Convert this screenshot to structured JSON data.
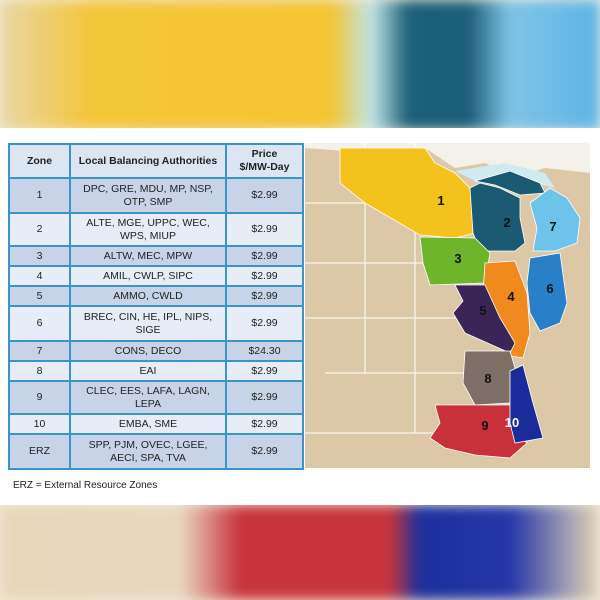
{
  "table": {
    "headers": [
      "Zone",
      "Local Balancing Authorities",
      "Price\n$/MW-Day"
    ],
    "header_price_line1": "Price",
    "header_price_line2": "$/MW-Day",
    "rows": [
      {
        "zone": "1",
        "lbas": "DPC, GRE, MDU, MP, NSP, OTP, SMP",
        "price": "$2.99"
      },
      {
        "zone": "2",
        "lbas": "ALTE, MGE, UPPC, WEC, WPS, MIUP",
        "price": "$2.99"
      },
      {
        "zone": "3",
        "lbas": "ALTW, MEC, MPW",
        "price": "$2.99"
      },
      {
        "zone": "4",
        "lbas": "AMIL, CWLP, SIPC",
        "price": "$2.99"
      },
      {
        "zone": "5",
        "lbas": "AMMO, CWLD",
        "price": "$2.99"
      },
      {
        "zone": "6",
        "lbas": "BREC, CIN, HE, IPL, NIPS, SIGE",
        "price": "$2.99"
      },
      {
        "zone": "7",
        "lbas": "CONS, DECO",
        "price": "$24.30"
      },
      {
        "zone": "8",
        "lbas": "EAI",
        "price": "$2.99"
      },
      {
        "zone": "9",
        "lbas": "CLEC, EES, LAFA, LAGN, LEPA",
        "price": "$2.99"
      },
      {
        "zone": "10",
        "lbas": "EMBA, SME",
        "price": "$2.99"
      },
      {
        "zone": "ERZ",
        "lbas": "SPP, PJM, OVEC, LGEE, AECI, SPA, TVA",
        "price": "$2.99"
      }
    ]
  },
  "footnote": "ERZ = External Resource Zones",
  "map": {
    "zones": [
      {
        "label": "1",
        "color": "#f4c21c"
      },
      {
        "label": "2",
        "color": "#1b5a73"
      },
      {
        "label": "3",
        "color": "#6fb52c"
      },
      {
        "label": "4",
        "color": "#f08a1e"
      },
      {
        "label": "5",
        "color": "#3b2456"
      },
      {
        "label": "6",
        "color": "#2a7fc9"
      },
      {
        "label": "7",
        "color": "#6ec3ea"
      },
      {
        "label": "8",
        "color": "#7d6f66"
      },
      {
        "label": "9",
        "color": "#c7313a"
      },
      {
        "label": "10",
        "color": "#1a2b9a"
      }
    ],
    "land_color": "#dcc8a6"
  }
}
